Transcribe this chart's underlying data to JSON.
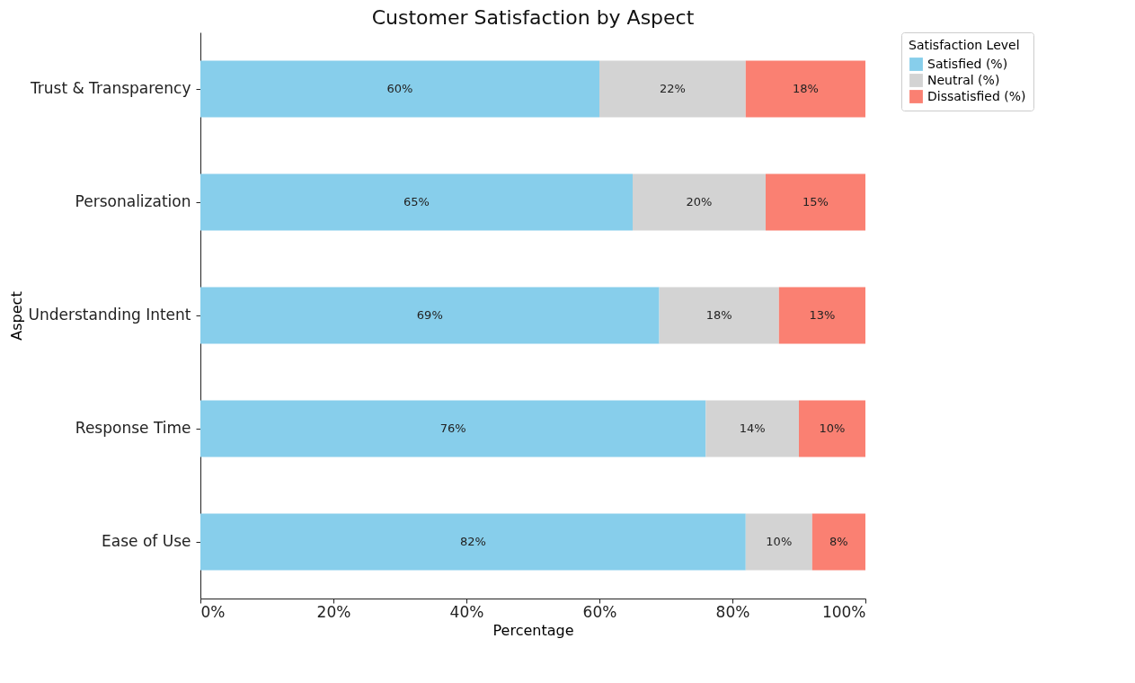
{
  "chart_data": {
    "type": "bar",
    "orientation": "horizontal",
    "stacked": true,
    "title": "Customer Satisfaction by Aspect",
    "xlabel": "Percentage",
    "ylabel": "Aspect",
    "legend_title": "Satisfaction Level",
    "legend": "top right",
    "grid": false,
    "categories": [
      "Trust & Transparency",
      "Personalization",
      "Understanding Intent",
      "Response Time",
      "Ease of Use"
    ],
    "xlim": [
      0,
      100
    ],
    "xticks": [
      {
        "value": 0,
        "label": "0%"
      },
      {
        "value": 20,
        "label": "20%"
      },
      {
        "value": 40,
        "label": "40%"
      },
      {
        "value": 60,
        "label": "60%"
      },
      {
        "value": 80,
        "label": "80%"
      },
      {
        "value": 100,
        "label": "100%"
      }
    ],
    "series": [
      {
        "name": "Satisfied (%)",
        "color": "#87ceeb",
        "values": [
          60,
          65,
          69,
          76,
          82
        ],
        "value_labels": [
          "60%",
          "65%",
          "69%",
          "76%",
          "82%"
        ]
      },
      {
        "name": "Neutral (%)",
        "color": "#d3d3d3",
        "values": [
          22,
          20,
          18,
          14,
          10
        ],
        "value_labels": [
          "22%",
          "20%",
          "18%",
          "14%",
          "10%"
        ]
      },
      {
        "name": "Dissatisfied (%)",
        "color": "#fa8072",
        "values": [
          18,
          15,
          13,
          10,
          8
        ],
        "value_labels": [
          "18%",
          "15%",
          "13%",
          "10%",
          "8%"
        ]
      }
    ]
  }
}
